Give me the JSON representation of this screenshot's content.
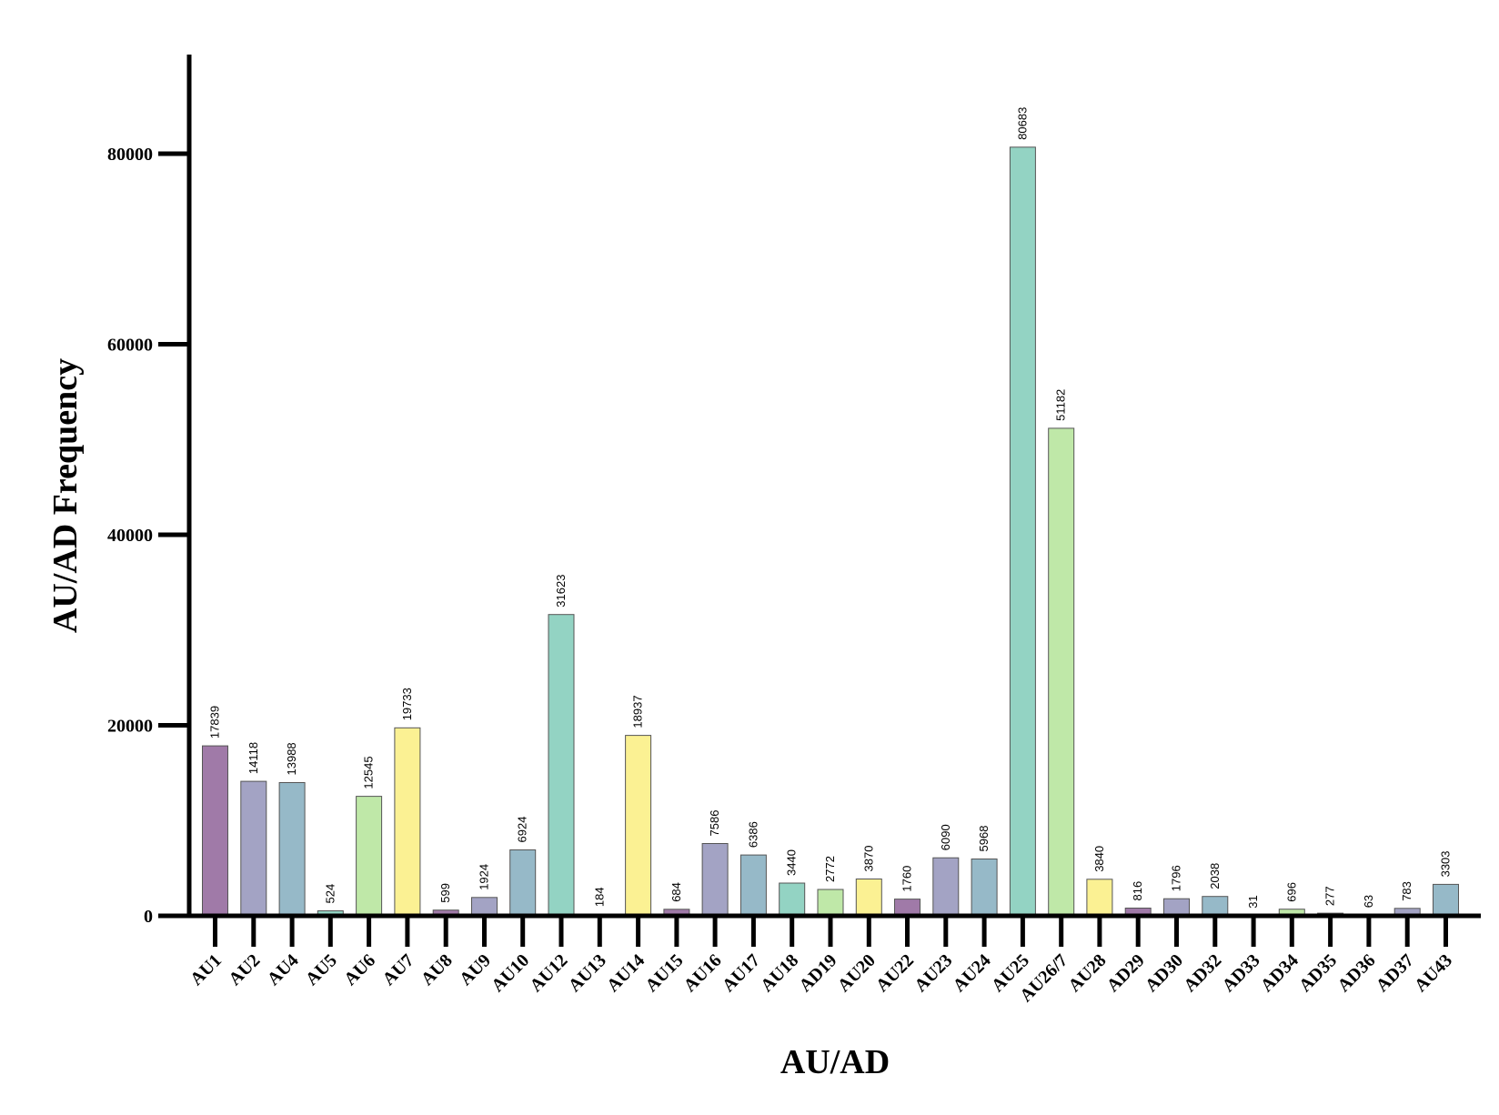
{
  "chart_data": {
    "type": "bar",
    "title": "",
    "xlabel": "AU/AD",
    "ylabel": "AU/AD Frequency",
    "ylim": [
      0,
      90000
    ],
    "yticks": [
      0,
      20000,
      40000,
      60000,
      80000
    ],
    "grid": false,
    "legend": "none",
    "categories": [
      "AU1",
      "AU2",
      "AU4",
      "AU5",
      "AU6",
      "AU7",
      "AU8",
      "AU9",
      "AU10",
      "AU12",
      "AU13",
      "AU14",
      "AU15",
      "AU16",
      "AU17",
      "AU18",
      "AD19",
      "AU20",
      "AU22",
      "AU23",
      "AU24",
      "AU25",
      "AU26/7",
      "AU28",
      "AD29",
      "AD30",
      "AD32",
      "AD33",
      "AD34",
      "AD35",
      "AD36",
      "AD37",
      "AU43"
    ],
    "values": [
      17839,
      14118,
      13988,
      524,
      12545,
      19733,
      599,
      1924,
      6924,
      31623,
      184,
      18937,
      684,
      7586,
      6386,
      3440,
      2772,
      3870,
      1760,
      6090,
      5968,
      80683,
      51182,
      3840,
      816,
      1796,
      2038,
      31,
      696,
      277,
      63,
      783,
      3303
    ],
    "data_labels": [
      "17839",
      "14118",
      "13988",
      "524",
      "12545",
      "19733",
      "599",
      "1924",
      "6924",
      "31623",
      "184",
      "18937",
      "684",
      "7586",
      "6386",
      "3440",
      "2772",
      "3870",
      "1760",
      "6090",
      "5968",
      "80683",
      "51182",
      "3840",
      "816",
      "1796",
      "2038",
      "31",
      "696",
      "277",
      "63",
      "783",
      "3303"
    ],
    "palette": [
      "#a07aa8",
      "#a3a3c4",
      "#96b9c8",
      "#93d3c3",
      "#bfe8a8",
      "#fbf193"
    ]
  }
}
